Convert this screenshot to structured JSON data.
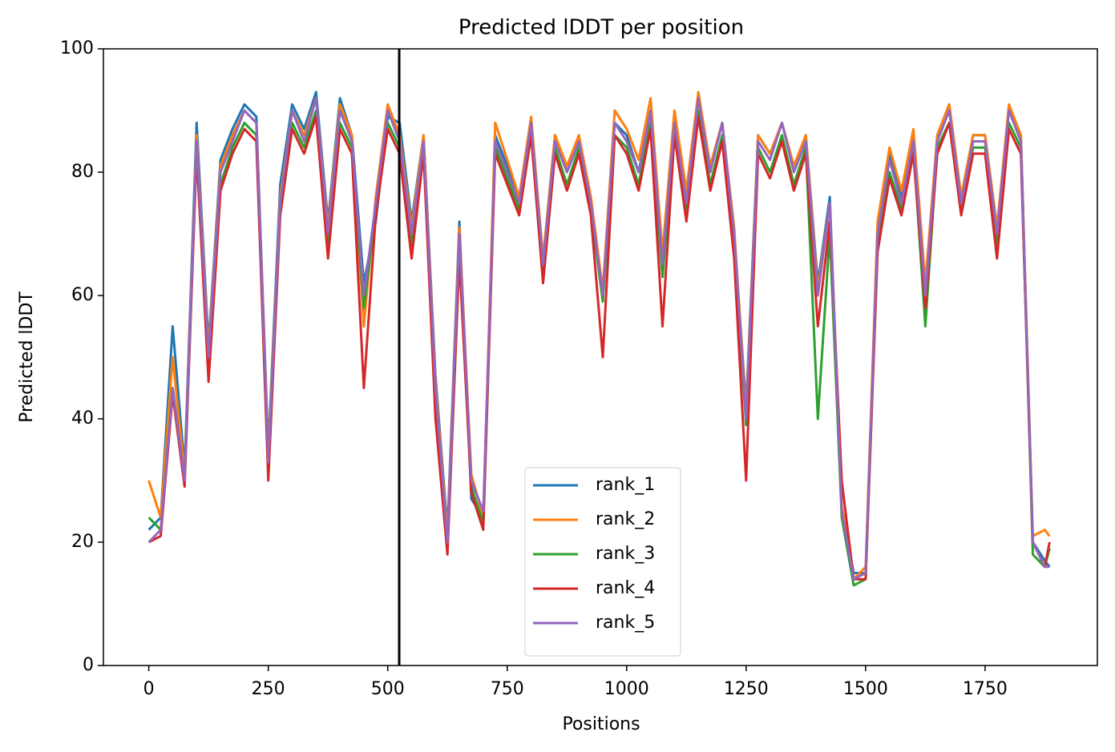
{
  "chart_data": {
    "type": "line",
    "title": "Predicted lDDT per position",
    "xlabel": "Positions",
    "ylabel": "Predicted lDDT",
    "x": [
      0,
      25,
      50,
      75,
      100,
      125,
      150,
      175,
      200,
      225,
      250,
      275,
      300,
      325,
      350,
      375,
      400,
      425,
      450,
      475,
      500,
      525,
      550,
      575,
      600,
      625,
      650,
      675,
      700,
      725,
      750,
      775,
      800,
      825,
      850,
      875,
      900,
      925,
      950,
      975,
      1000,
      1025,
      1050,
      1075,
      1100,
      1125,
      1150,
      1175,
      1200,
      1225,
      1250,
      1275,
      1300,
      1325,
      1350,
      1375,
      1400,
      1425,
      1450,
      1475,
      1500,
      1525,
      1550,
      1575,
      1600,
      1625,
      1650,
      1675,
      1700,
      1725,
      1750,
      1775,
      1800,
      1825,
      1850,
      1875,
      1885
    ],
    "series": [
      {
        "name": "rank_1",
        "color": "#1f77b4",
        "values": [
          22,
          24,
          55,
          32,
          88,
          52,
          82,
          87,
          91,
          89,
          35,
          78,
          91,
          87,
          93,
          72,
          92,
          86,
          62,
          72,
          89,
          88,
          72,
          86,
          47,
          22,
          72,
          27,
          24,
          86,
          81,
          76,
          88,
          66,
          86,
          80,
          85,
          75,
          60,
          88,
          86,
          80,
          90,
          66,
          88,
          76,
          92,
          81,
          88,
          70,
          42,
          86,
          83,
          88,
          81,
          86,
          62,
          76,
          25,
          15,
          15,
          71,
          83,
          76,
          86,
          61,
          86,
          91,
          76,
          86,
          86,
          71,
          90,
          86,
          20,
          17,
          16
        ]
      },
      {
        "name": "rank_2",
        "color": "#ff7f0e",
        "values": [
          30,
          24,
          50,
          31,
          86,
          51,
          81,
          86,
          90,
          88,
          34,
          76,
          90,
          86,
          92,
          71,
          91,
          86,
          55,
          76,
          91,
          86,
          71,
          86,
          46,
          21,
          71,
          31,
          24,
          88,
          82,
          76,
          89,
          66,
          86,
          81,
          86,
          76,
          61,
          90,
          87,
          82,
          92,
          67,
          90,
          77,
          93,
          81,
          88,
          71,
          41,
          86,
          83,
          88,
          81,
          86,
          61,
          75,
          26,
          14,
          16,
          72,
          84,
          77,
          87,
          62,
          86,
          91,
          76,
          86,
          86,
          71,
          91,
          86,
          21,
          22,
          21
        ]
      },
      {
        "name": "rank_3",
        "color": "#2ca02c",
        "values": [
          24,
          22,
          45,
          30,
          84,
          48,
          78,
          84,
          88,
          86,
          32,
          74,
          88,
          84,
          90,
          68,
          88,
          84,
          58,
          74,
          88,
          84,
          68,
          84,
          44,
          19,
          68,
          29,
          23,
          84,
          79,
          74,
          86,
          64,
          84,
          78,
          84,
          74,
          59,
          86,
          84,
          78,
          88,
          63,
          86,
          74,
          90,
          78,
          86,
          68,
          39,
          84,
          80,
          86,
          78,
          84,
          40,
          70,
          24,
          13,
          14,
          68,
          80,
          74,
          84,
          55,
          84,
          88,
          74,
          84,
          84,
          68,
          88,
          84,
          18,
          16,
          19
        ]
      },
      {
        "name": "rank_4",
        "color": "#d62728",
        "values": [
          20,
          21,
          44,
          29,
          83,
          46,
          77,
          83,
          87,
          85,
          30,
          73,
          87,
          83,
          89,
          66,
          87,
          83,
          45,
          73,
          87,
          83,
          66,
          83,
          40,
          18,
          66,
          28,
          22,
          83,
          78,
          73,
          86,
          62,
          83,
          77,
          83,
          73,
          50,
          86,
          83,
          77,
          87,
          55,
          86,
          72,
          89,
          77,
          85,
          66,
          30,
          83,
          79,
          85,
          77,
          83,
          55,
          72,
          30,
          14,
          14,
          67,
          79,
          73,
          83,
          58,
          83,
          88,
          73,
          83,
          83,
          66,
          87,
          83,
          20,
          16,
          20
        ]
      },
      {
        "name": "rank_5",
        "color": "#9467bd",
        "values": [
          20,
          22,
          45,
          30,
          85,
          50,
          80,
          85,
          90,
          88,
          33,
          75,
          90,
          85,
          92,
          70,
          90,
          85,
          60,
          75,
          90,
          85,
          70,
          85,
          45,
          20,
          70,
          30,
          25,
          85,
          80,
          75,
          88,
          65,
          85,
          80,
          85,
          75,
          60,
          88,
          85,
          80,
          90,
          65,
          88,
          75,
          92,
          80,
          88,
          70,
          40,
          85,
          82,
          88,
          80,
          85,
          60,
          75,
          25,
          14,
          15,
          70,
          82,
          75,
          85,
          60,
          85,
          90,
          75,
          85,
          85,
          70,
          90,
          85,
          20,
          16,
          16
        ]
      }
    ],
    "vline": 524,
    "xlim": [
      -95,
      1985
    ],
    "ylim": [
      0,
      100
    ],
    "xticks": [
      0,
      250,
      500,
      750,
      1000,
      1250,
      1500,
      1750
    ],
    "yticks": [
      0,
      20,
      40,
      60,
      80,
      100
    ],
    "legend": "lower center",
    "grid": false
  }
}
